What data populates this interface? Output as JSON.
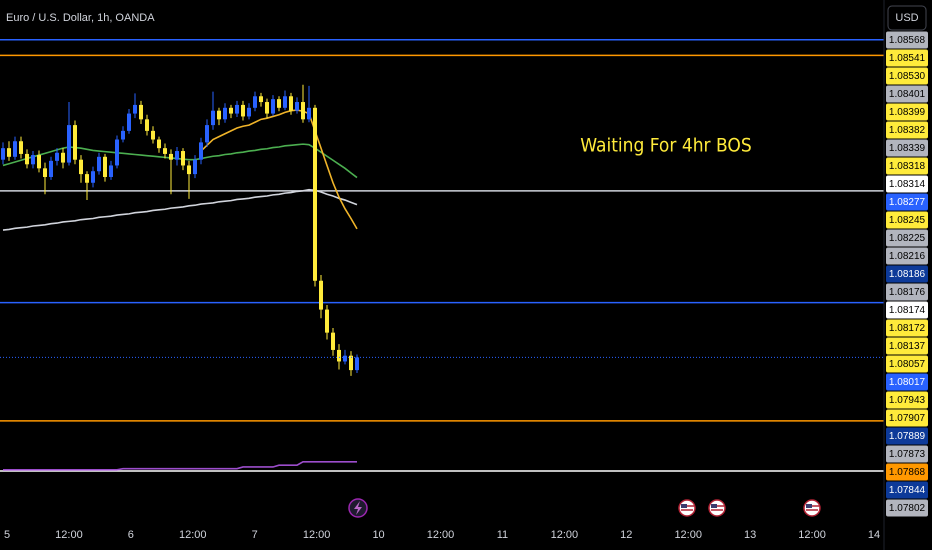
{
  "chart_data": {
    "type": "candlestick",
    "title": "Euro / U.S. Dollar, 1h, OANDA",
    "currency_button": "USD",
    "annotation": {
      "text": "Waiting For 4hr BOS",
      "color": "#ffeb3b"
    },
    "ylim": [
      1.07735,
      1.08637
    ],
    "x_labels": [
      "5",
      "12:00",
      "6",
      "12:00",
      "7",
      "12:00",
      "10",
      "12:00",
      "11",
      "12:00",
      "12",
      "12:00",
      "13",
      "12:00",
      "14"
    ],
    "candles": {
      "up_color": "#2962ff",
      "down_color": "#ffeb3b",
      "open": [
        1.0836,
        1.0838,
        1.08365,
        1.08392,
        1.0837,
        1.08352,
        1.08368,
        1.08345,
        1.0833,
        1.08358,
        1.08372,
        1.08355,
        1.0842,
        1.0836,
        1.08335,
        1.0832,
        1.0834,
        1.08365,
        1.0833,
        1.0835,
        1.08395,
        1.0841,
        1.0844,
        1.08455,
        1.0843,
        1.0841,
        1.08395,
        1.0838,
        1.0837,
        1.0836,
        1.08375,
        1.0835,
        1.08335,
        1.0836,
        1.0839,
        1.0842,
        1.08445,
        1.0843,
        1.0845,
        1.0844,
        1.08455,
        1.08435,
        1.0845,
        1.0847,
        1.0846,
        1.0844,
        1.08465,
        1.0845,
        1.0847,
        1.08445,
        1.0846,
        1.0843,
        1.0845,
        1.0815,
        1.081,
        1.0806,
        1.0803,
        1.0801,
        1.0802,
        1.07995
      ],
      "high": [
        1.0839,
        1.08392,
        1.084,
        1.084,
        1.08378,
        1.08375,
        1.08376,
        1.08355,
        1.08365,
        1.0838,
        1.0838,
        1.0846,
        1.08428,
        1.08368,
        1.0834,
        1.08348,
        1.08372,
        1.0837,
        1.08358,
        1.08402,
        1.08418,
        1.08448,
        1.08475,
        1.08462,
        1.08438,
        1.08418,
        1.084,
        1.08388,
        1.08378,
        1.08382,
        1.0838,
        1.08358,
        1.08368,
        1.08398,
        1.0843,
        1.08478,
        1.0845,
        1.08458,
        1.08455,
        1.08462,
        1.08462,
        1.08458,
        1.08478,
        1.08476,
        1.08466,
        1.08472,
        1.0847,
        1.0848,
        1.08476,
        1.08468,
        1.0849,
        1.08488,
        1.08455,
        1.0816,
        1.08108,
        1.08068,
        1.0804,
        1.0803,
        1.08028,
        1.08022
      ],
      "low": [
        1.08352,
        1.08358,
        1.0836,
        1.08362,
        1.08345,
        1.08345,
        1.08338,
        1.083,
        1.08325,
        1.0835,
        1.08345,
        1.0835,
        1.08352,
        1.0832,
        1.0829,
        1.08312,
        1.08334,
        1.08322,
        1.08325,
        1.08345,
        1.0839,
        1.08405,
        1.08432,
        1.08422,
        1.08402,
        1.08388,
        1.08372,
        1.08362,
        1.083,
        1.0835,
        1.08342,
        1.08292,
        1.08328,
        1.08352,
        1.08382,
        1.08412,
        1.0842,
        1.08424,
        1.08432,
        1.08434,
        1.08428,
        1.0843,
        1.08444,
        1.08452,
        1.08432,
        1.08436,
        1.08444,
        1.08446,
        1.08438,
        1.0844,
        1.08424,
        1.08425,
        1.0814,
        1.08085,
        1.08048,
        1.0802,
        1.07996,
        1.08005,
        1.07985,
        1.0799
      ],
      "close": [
        1.0838,
        1.08365,
        1.08392,
        1.0837,
        1.08352,
        1.08368,
        1.08345,
        1.0833,
        1.08358,
        1.08372,
        1.08355,
        1.0842,
        1.0836,
        1.08335,
        1.0832,
        1.0834,
        1.08365,
        1.0833,
        1.0835,
        1.08395,
        1.0841,
        1.0844,
        1.08455,
        1.0843,
        1.0841,
        1.08395,
        1.0838,
        1.0837,
        1.0836,
        1.08375,
        1.0835,
        1.08335,
        1.0836,
        1.0839,
        1.0842,
        1.08445,
        1.0843,
        1.0845,
        1.0844,
        1.08455,
        1.08435,
        1.0845,
        1.0847,
        1.0846,
        1.0844,
        1.08465,
        1.0845,
        1.0847,
        1.08445,
        1.0846,
        1.0843,
        1.0845,
        1.0815,
        1.081,
        1.0806,
        1.0803,
        1.0801,
        1.0802,
        1.07995,
        1.08017
      ]
    },
    "last_price_color": "#2962ff",
    "lines": [
      {
        "color": "#d1d4dc",
        "values": [
          1.08238,
          1.08239,
          1.08241,
          1.08242,
          1.08243,
          1.08245,
          1.08246,
          1.08247,
          1.08249,
          1.0825,
          1.08252,
          1.08253,
          1.08254,
          1.08256,
          1.08257,
          1.08258,
          1.0826,
          1.08261,
          1.08262,
          1.08264,
          1.08265,
          1.08266,
          1.08268,
          1.08269,
          1.0827,
          1.08272,
          1.08273,
          1.08274,
          1.08276,
          1.08277,
          1.08278,
          1.0828,
          1.08281,
          1.08283,
          1.08284,
          1.08285,
          1.08287,
          1.08288,
          1.08289,
          1.08291,
          1.08292,
          1.08293,
          1.08295,
          1.08296,
          1.08297,
          1.08299,
          1.083,
          1.08302,
          1.08303,
          1.08305,
          1.08306,
          1.08308,
          1.08307,
          1.08304,
          1.083,
          1.08297,
          1.08293,
          1.0829,
          1.08286,
          1.08282
        ]
      },
      {
        "color": "#4caf50",
        "values": [
          1.0835,
          1.08353,
          1.08356,
          1.08359,
          1.08362,
          1.08365,
          1.08368,
          1.08371,
          1.08374,
          1.08377,
          1.0838,
          1.08382,
          1.08381,
          1.0838,
          1.08378,
          1.08376,
          1.08375,
          1.08374,
          1.08373,
          1.08372,
          1.08371,
          1.0837,
          1.08369,
          1.08368,
          1.08367,
          1.08366,
          1.08365,
          1.08364,
          1.08363,
          1.08362,
          1.08361,
          1.0836,
          1.0836,
          1.08362,
          1.08364,
          1.08366,
          1.08367,
          1.08369,
          1.0837,
          1.08372,
          1.08373,
          1.08375,
          1.08376,
          1.08378,
          1.08379,
          1.08381,
          1.08382,
          1.08384,
          1.08385,
          1.08386,
          1.08387,
          1.08386,
          1.0838,
          1.08373,
          1.08366,
          1.08359,
          1.08352,
          1.08345,
          1.08337,
          1.08329
        ]
      },
      {
        "color": "#f0b429",
        "values": [
          null,
          null,
          null,
          null,
          null,
          null,
          null,
          null,
          null,
          null,
          null,
          null,
          null,
          null,
          null,
          null,
          null,
          null,
          null,
          null,
          null,
          null,
          null,
          null,
          null,
          null,
          null,
          null,
          null,
          null,
          null,
          null,
          null,
          1.08375,
          1.08385,
          1.08395,
          1.084,
          1.08405,
          1.0841,
          1.08415,
          1.08418,
          1.0842,
          1.08425,
          1.0843,
          1.08432,
          1.08435,
          1.08438,
          1.08442,
          1.08445,
          1.08446,
          1.08444,
          1.0844,
          1.0841,
          1.0838,
          1.0835,
          1.0832,
          1.08295,
          1.08275,
          1.08258,
          1.0824
        ]
      },
      {
        "color": "#9c4dcc",
        "values": [
          1.07822,
          1.07822,
          1.07822,
          1.07822,
          1.07822,
          1.07822,
          1.07822,
          1.07822,
          1.07822,
          1.07822,
          1.07822,
          1.07822,
          1.07822,
          1.07822,
          1.07822,
          1.07822,
          1.07822,
          1.07822,
          1.07822,
          1.07822,
          1.07824,
          1.07824,
          1.07824,
          1.07824,
          1.07824,
          1.07824,
          1.07824,
          1.07824,
          1.07824,
          1.07824,
          1.07824,
          1.07824,
          1.07824,
          1.07824,
          1.07824,
          1.07824,
          1.07824,
          1.07824,
          1.07824,
          1.07824,
          1.07827,
          1.07827,
          1.07827,
          1.07827,
          1.07827,
          1.07827,
          1.0783,
          1.0783,
          1.0783,
          1.0783,
          1.07836,
          1.07836,
          1.07836,
          1.07836,
          1.07836,
          1.07836,
          1.07836,
          1.07836,
          1.07836,
          1.07836
        ]
      }
    ],
    "levels": [
      {
        "value": 1.08568,
        "color": "#2962ff"
      },
      {
        "value": 1.08541,
        "color": "#ff9800"
      },
      {
        "value": 1.08306,
        "color": "#d1d4dc"
      },
      {
        "value": 1.08112,
        "color": "#2962ff"
      },
      {
        "value": 1.07907,
        "color": "#ff9800"
      },
      {
        "value": 1.0782,
        "color": "#ffffff"
      }
    ],
    "price_tags": [
      {
        "label": "1.08568",
        "color": "#b2b5be",
        "text_color": "#000000"
      },
      {
        "label": "1.08541",
        "color": "#ffeb3b",
        "text_color": "#000000"
      },
      {
        "label": "1.08530",
        "color": "#ffeb3b",
        "text_color": "#000000"
      },
      {
        "label": "1.08401",
        "color": "#b2b5be",
        "text_color": "#000000"
      },
      {
        "label": "1.08399",
        "color": "#ffeb3b",
        "text_color": "#000000"
      },
      {
        "label": "1.08382",
        "color": "#ffeb3b",
        "text_color": "#000000"
      },
      {
        "label": "1.08339",
        "color": "#b2b5be",
        "text_color": "#000000"
      },
      {
        "label": "1.08318",
        "color": "#ffeb3b",
        "text_color": "#000000"
      },
      {
        "label": "1.08314",
        "color": "#ffffff",
        "text_color": "#000000"
      },
      {
        "label": "1.08277",
        "color": "#2962ff",
        "text_color": "#ffffff"
      },
      {
        "label": "1.08245",
        "color": "#ffeb3b",
        "text_color": "#000000"
      },
      {
        "label": "1.08225",
        "color": "#b2b5be",
        "text_color": "#000000"
      },
      {
        "label": "1.08216",
        "color": "#b2b5be",
        "text_color": "#000000"
      },
      {
        "label": "1.08186",
        "color": "#0d3a99",
        "text_color": "#ffffff"
      },
      {
        "label": "1.08176",
        "color": "#b2b5be",
        "text_color": "#000000"
      },
      {
        "label": "1.08174",
        "color": "#ffffff",
        "text_color": "#000000"
      },
      {
        "label": "1.08172",
        "color": "#ffeb3b",
        "text_color": "#000000"
      },
      {
        "label": "1.08137",
        "color": "#ffeb3b",
        "text_color": "#000000"
      },
      {
        "label": "1.08057",
        "color": "#ffeb3b",
        "text_color": "#000000"
      },
      {
        "label": "1.08017",
        "color": "#2962ff",
        "text_color": "#ffffff"
      },
      {
        "label": "1.07943",
        "color": "#ffeb3b",
        "text_color": "#000000"
      },
      {
        "label": "1.07907",
        "color": "#ffeb3b",
        "text_color": "#000000"
      },
      {
        "label": "1.07889",
        "color": "#0d3a99",
        "text_color": "#ffffff"
      },
      {
        "label": "1.07873",
        "color": "#b2b5be",
        "text_color": "#000000"
      },
      {
        "label": "1.07868",
        "color": "#ff9800",
        "text_color": "#000000"
      },
      {
        "label": "1.07844",
        "color": "#0d3a99",
        "text_color": "#ffffff"
      },
      {
        "label": "1.07802",
        "color": "#b2b5be",
        "text_color": "#000000"
      }
    ]
  }
}
